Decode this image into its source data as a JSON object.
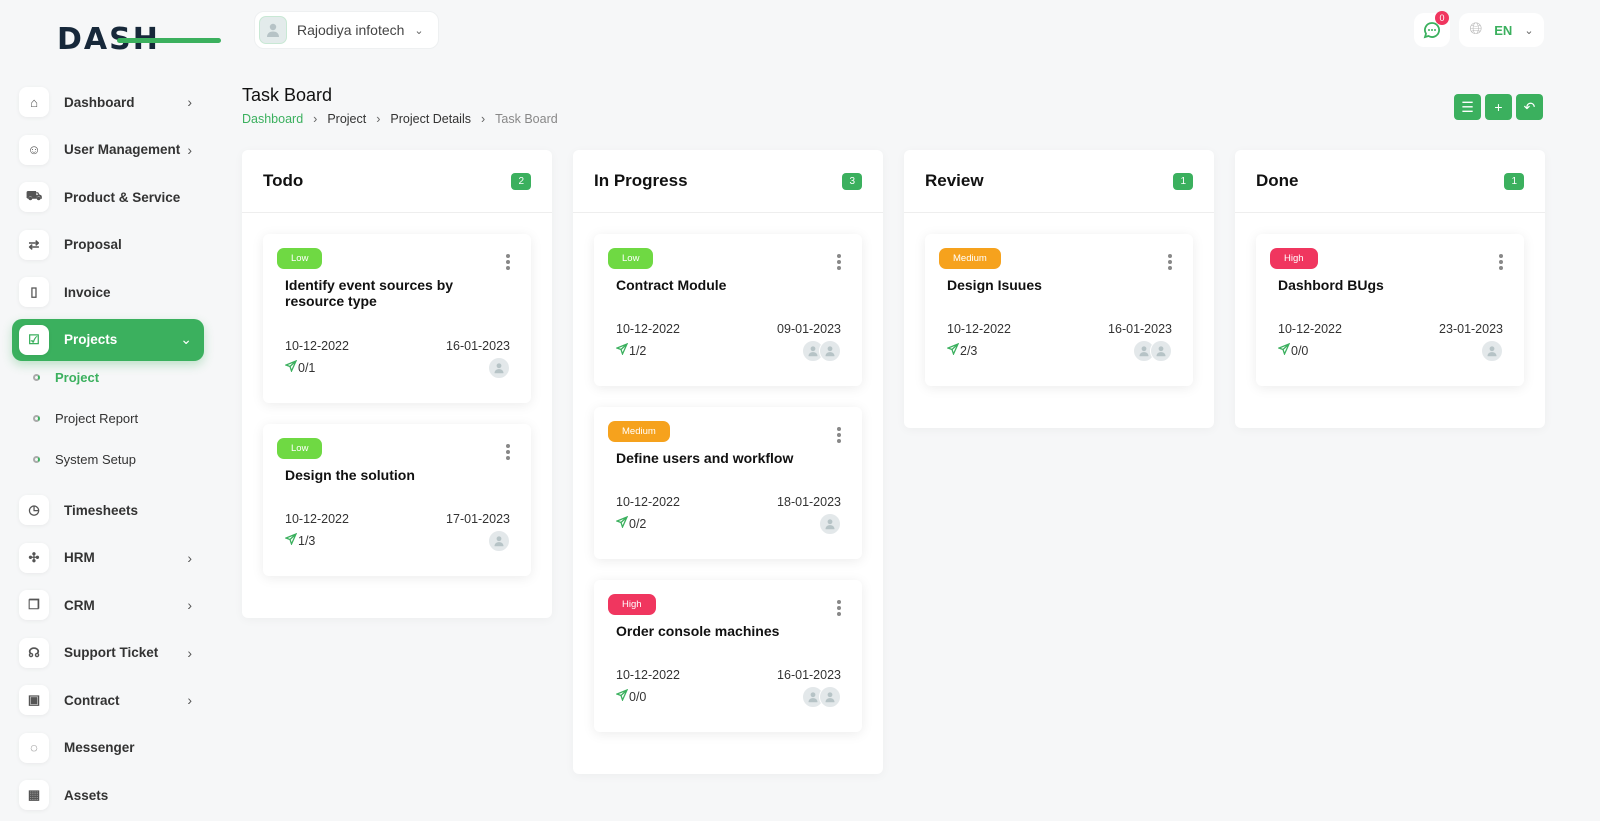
{
  "brand": {
    "logo_text": "DASH",
    "accent": "#3bb05e"
  },
  "header": {
    "company": "Rajodiya infotech",
    "notifications": "0",
    "language": "EN"
  },
  "sidebar": {
    "items": [
      {
        "label": "Dashboard",
        "icon": "home-icon",
        "chevron": true
      },
      {
        "label": "User Management",
        "icon": "users-icon",
        "chevron": true
      },
      {
        "label": "Product & Service",
        "icon": "cart-icon",
        "chevron": false
      },
      {
        "label": "Proposal",
        "icon": "proposal-icon",
        "chevron": false
      },
      {
        "label": "Invoice",
        "icon": "file-icon",
        "chevron": false
      },
      {
        "label": "Projects",
        "icon": "check-square-icon",
        "chevron": true,
        "active": true,
        "sub": [
          {
            "label": "Project",
            "active": true
          },
          {
            "label": "Project Report"
          },
          {
            "label": "System Setup"
          }
        ]
      },
      {
        "label": "Timesheets",
        "icon": "clock-icon",
        "chevron": false
      },
      {
        "label": "HRM",
        "icon": "hrm-icon",
        "chevron": true
      },
      {
        "label": "CRM",
        "icon": "crm-icon",
        "chevron": true
      },
      {
        "label": "Support Ticket",
        "icon": "headphones-icon",
        "chevron": true
      },
      {
        "label": "Contract",
        "icon": "contract-icon",
        "chevron": true
      },
      {
        "label": "Messenger",
        "icon": "chat-icon",
        "chevron": false
      },
      {
        "label": "Assets",
        "icon": "calculator-icon",
        "chevron": false
      }
    ]
  },
  "page": {
    "title": "Task Board",
    "breadcrumb": [
      "Dashboard",
      "Project",
      "Project Details",
      "Task Board"
    ]
  },
  "priority_colors": {
    "Low": "#6fd943",
    "Medium": "#f6a21d",
    "High": "#f0365f"
  },
  "columns": [
    {
      "title": "Todo",
      "count": "2",
      "cards": [
        {
          "priority": "Low",
          "title": "Identify event sources by resource type",
          "start": "10-12-2022",
          "end": "16-01-2023",
          "subtasks": "0/1",
          "avatars": 1
        },
        {
          "priority": "Low",
          "title": "Design the solution",
          "start": "10-12-2022",
          "end": "17-01-2023",
          "subtasks": "1/3",
          "avatars": 1
        }
      ]
    },
    {
      "title": "In Progress",
      "count": "3",
      "cards": [
        {
          "priority": "Low",
          "title": "Contract Module",
          "start": "10-12-2022",
          "end": "09-01-2023",
          "subtasks": "1/2",
          "avatars": 2
        },
        {
          "priority": "Medium",
          "title": "Define users and workflow",
          "start": "10-12-2022",
          "end": "18-01-2023",
          "subtasks": "0/2",
          "avatars": 1
        },
        {
          "priority": "High",
          "title": "Order console machines",
          "start": "10-12-2022",
          "end": "16-01-2023",
          "subtasks": "0/0",
          "avatars": 2
        }
      ]
    },
    {
      "title": "Review",
      "count": "1",
      "cards": [
        {
          "priority": "Medium",
          "title": "Design Isuues",
          "start": "10-12-2022",
          "end": "16-01-2023",
          "subtasks": "2/3",
          "avatars": 2
        }
      ]
    },
    {
      "title": "Done",
      "count": "1",
      "cards": [
        {
          "priority": "High",
          "title": "Dashbord BUgs",
          "start": "10-12-2022",
          "end": "23-01-2023",
          "subtasks": "0/0",
          "avatars": 1
        }
      ]
    }
  ]
}
